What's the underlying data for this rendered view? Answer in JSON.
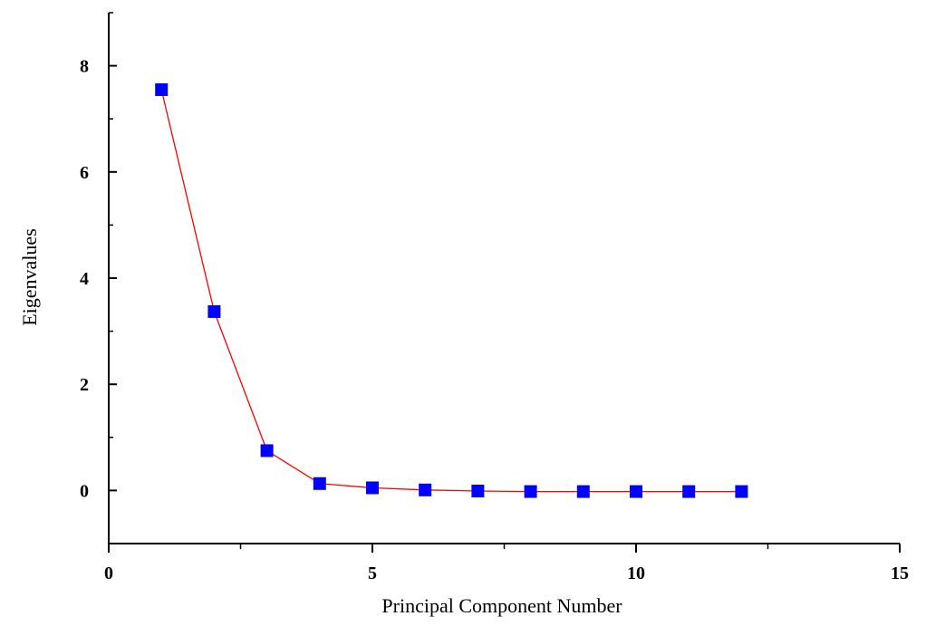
{
  "chart_data": {
    "type": "scatter",
    "xlabel": "Principal Component Number",
    "ylabel": "Eigenvalues",
    "xlim": [
      0,
      15
    ],
    "ylim": [
      -1,
      9
    ],
    "xticks": [
      0,
      5,
      10,
      15
    ],
    "yticks": [
      0,
      2,
      4,
      6,
      8
    ],
    "x_minor_step": 2.5,
    "y_minor_step": 1,
    "grid": false,
    "legend": "none",
    "series": [
      {
        "x": [
          1,
          2,
          3,
          4,
          5,
          6,
          7,
          8,
          9,
          10,
          11,
          12
        ],
        "values": [
          7.55,
          3.37,
          0.75,
          0.13,
          0.05,
          0.01,
          -0.01,
          -0.02,
          -0.02,
          -0.02,
          -0.02,
          -0.02
        ],
        "marker": "square",
        "marker_color": "#0000ff",
        "line_color": "#ff0000"
      }
    ]
  }
}
